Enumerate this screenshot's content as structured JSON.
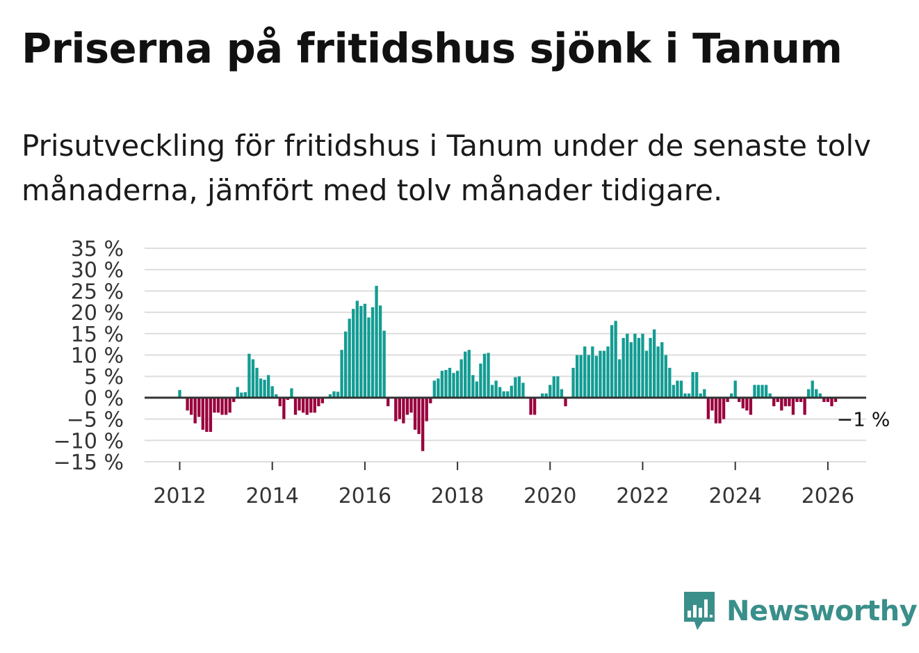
{
  "title": "Priserna på fritidshus sjönk i Tanum",
  "subtitle": "Prisutveckling för fritidshus i Tanum under de senaste tolv månaderna, jämfört med tolv månader tidigare.",
  "brand": {
    "name": "Newsworthy",
    "color": "#3a8f8a",
    "icon": "bar-chart-speech-bubble-icon"
  },
  "colors": {
    "positive": "#139c93",
    "negative": "#99003d",
    "zero_line": "#333333",
    "grid": "#dddddd"
  },
  "chart_data": {
    "type": "bar",
    "title": "Priserna på fritidshus sjönk i Tanum",
    "xlabel": "",
    "ylabel": "",
    "ylim": [
      -15,
      35
    ],
    "y_ticks": [
      35,
      30,
      25,
      20,
      15,
      10,
      5,
      0,
      -5,
      -10,
      -15
    ],
    "y_tick_labels": [
      "35 %",
      "30 %",
      "25 %",
      "20 %",
      "15 %",
      "10 %",
      "5 %",
      "0 %",
      "−5 %",
      "−10 %",
      "−15 %"
    ],
    "x_ticks": [
      2012,
      2014,
      2016,
      2018,
      2020,
      2022,
      2024,
      2026
    ],
    "x_tick_labels": [
      "2012",
      "2014",
      "2016",
      "2018",
      "2020",
      "2022",
      "2024",
      "2026"
    ],
    "start": "2012-01",
    "frequency": "monthly",
    "grid": true,
    "end_label": "−1 %",
    "values": [
      1.8,
      0,
      -3,
      -4,
      -6,
      -4.5,
      -7.5,
      -8,
      -8,
      -3.5,
      -3.5,
      -4,
      -4,
      -3.5,
      -1,
      2.5,
      1.2,
      1.3,
      10.3,
      9,
      7,
      4.5,
      4.2,
      5.3,
      2.7,
      0.8,
      -2,
      -5,
      -0.5,
      2.2,
      -4,
      -3,
      -3.5,
      -4,
      -3.5,
      -3.5,
      -2,
      -1.3,
      0,
      0.8,
      1.5,
      1.4,
      11.2,
      15.5,
      18.5,
      20.8,
      22.7,
      21.5,
      22,
      18.8,
      21.2,
      26.2,
      21.6,
      15.7,
      -2,
      0,
      -5.5,
      -5,
      -6,
      -4,
      -3.5,
      -7.5,
      -8.5,
      -12.5,
      -5.5,
      -1.3,
      4,
      4.5,
      6.3,
      6.5,
      7,
      5.8,
      6.3,
      9,
      10.8,
      11.2,
      5.3,
      3.8,
      8,
      10.3,
      10.5,
      3,
      4,
      2.5,
      1.5,
      1.5,
      2.8,
      4.8,
      5,
      3.5,
      0,
      -4,
      -4,
      0,
      1,
      1,
      3,
      5,
      5,
      2,
      -2,
      0,
      7,
      10,
      10,
      12,
      10,
      12,
      9.8,
      11,
      11,
      12,
      17,
      18,
      9,
      14,
      15,
      13,
      15,
      14,
      15,
      11,
      14,
      16,
      12,
      13,
      10,
      7,
      3,
      4,
      4,
      1,
      1,
      6,
      6,
      1,
      2,
      -5,
      -3,
      -6,
      -6,
      -5,
      -1,
      1,
      4,
      -1,
      -2.5,
      -3,
      -4,
      3,
      3,
      3,
      3,
      1,
      -2,
      -1,
      -3,
      -2,
      -2,
      -4,
      -1,
      -1,
      -4,
      2,
      4,
      2,
      1,
      -1,
      -1,
      -2,
      -1
    ]
  }
}
